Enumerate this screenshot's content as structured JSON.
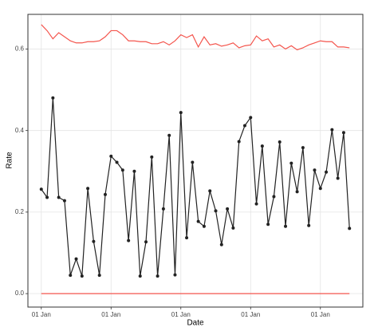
{
  "chart_data": {
    "type": "line",
    "x_label": "Date",
    "y_label": "Rate",
    "categories": [
      "01 Jan",
      null,
      null,
      null,
      null,
      null,
      null,
      null,
      null,
      null,
      null,
      null,
      "01 Jan",
      null,
      null,
      null,
      null,
      null,
      null,
      null,
      null,
      null,
      null,
      null,
      "01 Jan",
      null,
      null,
      null,
      null,
      null,
      null,
      null,
      null,
      null,
      null,
      null,
      "01 Jan",
      null,
      null,
      null,
      null,
      null,
      null,
      null,
      null,
      null,
      null,
      null,
      "01 Jan",
      null,
      null,
      null,
      null,
      null
    ],
    "series": [
      {
        "color": "#f4554d",
        "markers": false,
        "values": [
          0.66,
          0.645,
          0.625,
          0.64,
          0.63,
          0.62,
          0.615,
          0.615,
          0.618,
          0.618,
          0.62,
          0.63,
          0.645,
          0.645,
          0.635,
          0.62,
          0.62,
          0.618,
          0.618,
          0.613,
          0.613,
          0.618,
          0.61,
          0.62,
          0.635,
          0.628,
          0.635,
          0.605,
          0.63,
          0.61,
          0.613,
          0.607,
          0.61,
          0.615,
          0.603,
          0.608,
          0.61,
          0.632,
          0.62,
          0.625,
          0.605,
          0.61,
          0.6,
          0.608,
          0.598,
          0.603,
          0.61,
          0.615,
          0.62,
          0.618,
          0.618,
          0.605,
          0.605,
          0.603
        ]
      },
      {
        "color": "#222222",
        "markers": true,
        "values": [
          0.256,
          0.236,
          0.48,
          0.236,
          0.228,
          0.045,
          0.085,
          0.043,
          0.258,
          0.128,
          0.045,
          0.243,
          0.337,
          0.322,
          0.303,
          0.13,
          0.3,
          0.043,
          0.127,
          0.335,
          0.043,
          0.208,
          0.388,
          0.046,
          0.444,
          0.137,
          0.322,
          0.177,
          0.165,
          0.252,
          0.203,
          0.12,
          0.208,
          0.161,
          0.373,
          0.412,
          0.432,
          0.22,
          0.362,
          0.17,
          0.238,
          0.372,
          0.165,
          0.32,
          0.25,
          0.358,
          0.167,
          0.303,
          0.258,
          0.298,
          0.402,
          0.283,
          0.395,
          0.16
        ]
      },
      {
        "color": "#f4554d",
        "markers": false,
        "values": [
          0,
          0,
          0,
          0,
          0,
          0,
          0,
          0,
          0,
          0,
          0,
          0,
          0,
          0,
          0,
          0,
          0,
          0,
          0,
          0,
          0,
          0,
          0,
          0,
          0,
          0,
          0,
          0,
          0,
          0,
          0,
          0,
          0,
          0,
          0,
          0,
          0,
          0,
          0,
          0,
          0,
          0,
          0,
          0,
          0,
          0,
          0,
          0,
          0,
          0,
          0,
          0,
          0,
          0
        ]
      }
    ],
    "ylim": [
      -0.033,
      0.685
    ],
    "yticks": [
      {
        "value": 0,
        "label": "0.0"
      },
      {
        "value": 0.2,
        "label": "0.2"
      },
      {
        "value": 0.4,
        "label": "0.4"
      },
      {
        "value": 0.6,
        "label": "0.6"
      }
    ],
    "grid": true
  }
}
